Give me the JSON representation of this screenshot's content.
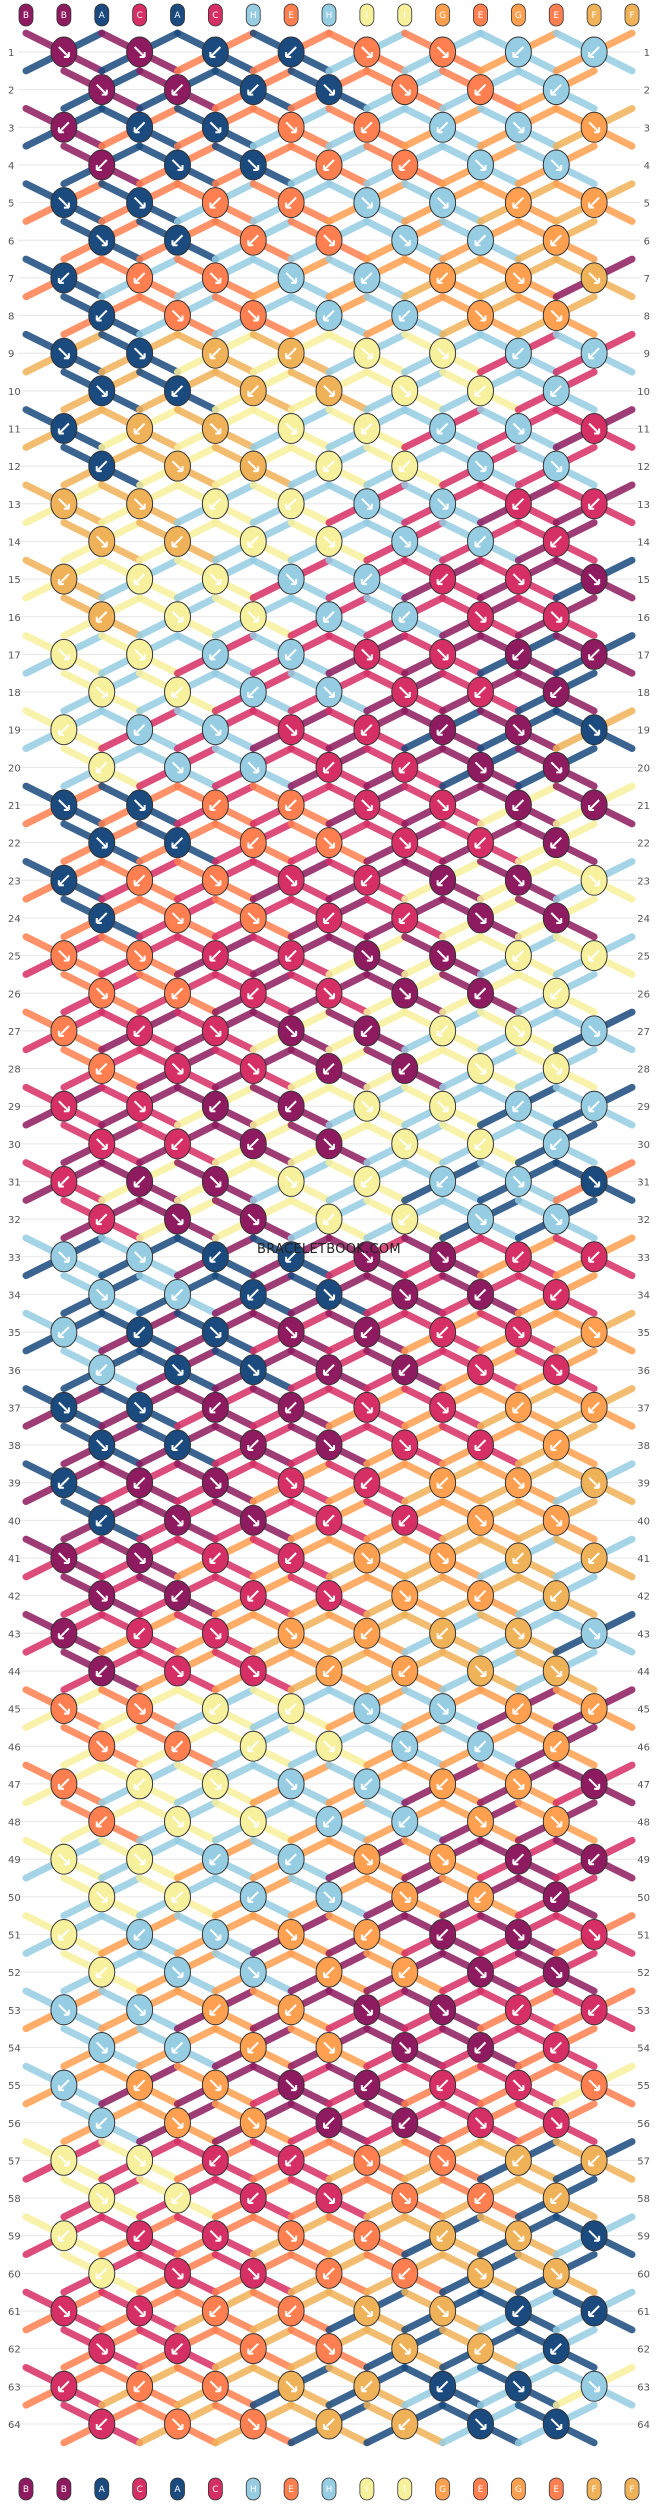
{
  "watermark": "BRACELETBOOK.COM",
  "strings": {
    "letters": [
      "B",
      "B",
      "A",
      "C",
      "A",
      "C",
      "H",
      "E",
      "H",
      "I",
      "I",
      "G",
      "E",
      "G",
      "E",
      "F",
      "F"
    ],
    "colors": {
      "B": "#8e1b5f",
      "A": "#1a4a7e",
      "C": "#d62f66",
      "H": "#96cde3",
      "E": "#ff7f50",
      "I": "#f7f09d",
      "G": "#ff9f50",
      "F": "#f0b259"
    }
  },
  "rows": [
    "1",
    "2",
    "3",
    "4",
    "5",
    "6",
    "7",
    "8",
    "9",
    "10",
    "11",
    "12",
    "13",
    "14",
    "15",
    "16",
    "17",
    "18",
    "19",
    "20",
    "21",
    "22",
    "23",
    "24",
    "25",
    "26",
    "27",
    "28",
    "29",
    "30",
    "31",
    "32",
    "33",
    "34",
    "35",
    "36",
    "37",
    "38",
    "39",
    "40",
    "41",
    "42",
    "43",
    "44",
    "45",
    "46",
    "47",
    "48",
    "49",
    "50",
    "51",
    "52",
    "53",
    "54",
    "55",
    "56",
    "57",
    "58",
    "59",
    "60",
    "61",
    "62",
    "63",
    "64"
  ],
  "knot_palette": [
    "#8e1b5f",
    "#1a4a7e",
    "#d62f66",
    "#96cde3",
    "#ff7f50",
    "#f7f09d",
    "#ff9f50",
    "#f0b259"
  ],
  "knot_bands": [
    {
      "rows": [
        1,
        8
      ],
      "colors": [
        "#8e1b5f",
        "#1a4a7e",
        "#ff7f50",
        "#96cde3",
        "#ff9f50",
        "#f0b259"
      ]
    },
    {
      "rows": [
        9,
        20
      ],
      "colors": [
        "#d62f66",
        "#8e1b5f",
        "#1a4a7e",
        "#f0b259",
        "#f7f09d",
        "#96cde3"
      ]
    },
    {
      "rows": [
        21,
        32
      ],
      "colors": [
        "#ff7f50",
        "#d62f66",
        "#8e1b5f",
        "#f7f09d",
        "#96cde3",
        "#1a4a7e"
      ]
    },
    {
      "rows": [
        33,
        44
      ],
      "colors": [
        "#ff9f50",
        "#f0b259",
        "#96cde3",
        "#1a4a7e",
        "#8e1b5f",
        "#d62f66"
      ]
    },
    {
      "rows": [
        45,
        56
      ],
      "colors": [
        "#f7f09d",
        "#96cde3",
        "#ff9f50",
        "#8e1b5f",
        "#d62f66",
        "#ff7f50"
      ]
    },
    {
      "rows": [
        57,
        64
      ],
      "colors": [
        "#1a4a7e",
        "#96cde3",
        "#f7f09d",
        "#d62f66",
        "#ff7f50",
        "#f0b259"
      ]
    }
  ]
}
